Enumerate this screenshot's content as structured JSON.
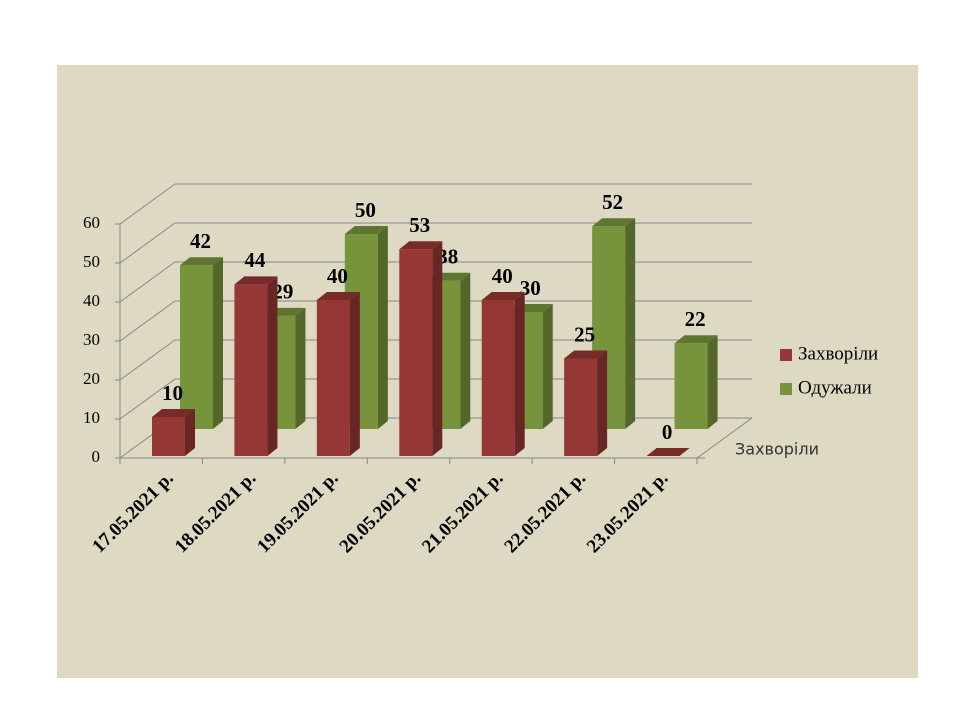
{
  "chart_data": {
    "type": "bar3d",
    "categories": [
      "17.05.2021 р.",
      "18.05.2021 р.",
      "19.05.2021 р.",
      "20.05.2021 р.",
      "21.05.2021 р.",
      "22.05.2021 р.",
      "23.05.2021 р."
    ],
    "series": [
      {
        "name": "Захворіли",
        "color": "#953735",
        "values": [
          10,
          44,
          40,
          53,
          40,
          25,
          0
        ]
      },
      {
        "name": "Одужали",
        "color": "#77933c",
        "values": [
          42,
          29,
          50,
          38,
          30,
          52,
          22
        ]
      }
    ],
    "depth_labels": [
      "Захворіли"
    ],
    "ylim": [
      0,
      60
    ],
    "yticks": [
      0,
      10,
      20,
      30,
      40,
      50,
      60
    ],
    "grid": true,
    "legend": "right"
  }
}
